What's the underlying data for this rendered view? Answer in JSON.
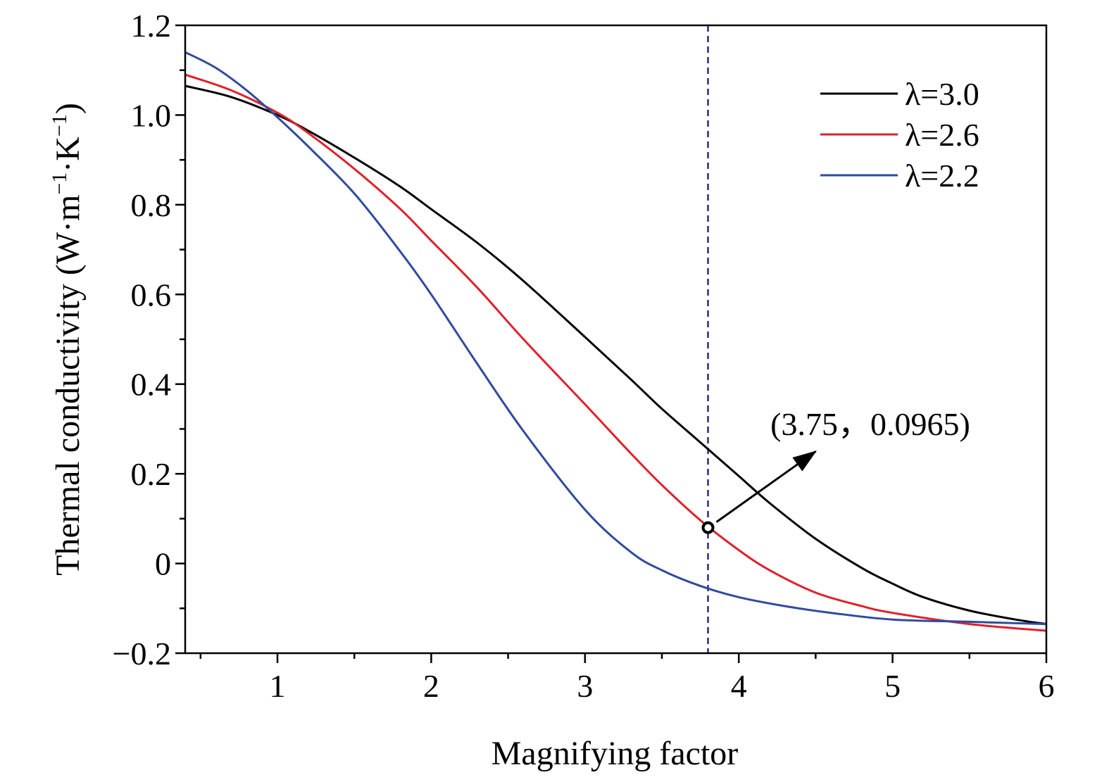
{
  "chart_data": {
    "type": "line",
    "xlabel": "Magnifying factor",
    "ylabel_main": "Thermal conductivity (W·m",
    "ylabel_sup1": "−1",
    "ylabel_mid": "·K",
    "ylabel_sup2": "−1",
    "ylabel_end": ")",
    "xlim": [
      0.4,
      6
    ],
    "ylim": [
      -0.2,
      1.2
    ],
    "x_ticks": [
      1,
      2,
      3,
      4,
      5,
      6
    ],
    "x_tick_labels": [
      "1",
      "2",
      "3",
      "4",
      "5",
      "6"
    ],
    "y_ticks": [
      -0.2,
      0,
      0.2,
      0.4,
      0.6,
      0.8,
      1.0,
      1.2
    ],
    "y_tick_labels": [
      "−0.2",
      "0",
      "0.2",
      "0.4",
      "0.6",
      "0.8",
      "1.0",
      "1.2"
    ],
    "grid": false,
    "legend_position": "top-right",
    "series": [
      {
        "name": "λ=3.0",
        "color": "#000000",
        "x": [
          0.4,
          0.7,
          1.0,
          1.2,
          1.5,
          1.8,
          2.0,
          2.3,
          2.6,
          3.0,
          3.3,
          3.5,
          3.75,
          4.0,
          4.2,
          4.5,
          4.8,
          5.0,
          5.2,
          5.5,
          5.8,
          6.0
        ],
        "y": [
          1.065,
          1.04,
          1.0,
          0.965,
          0.905,
          0.84,
          0.79,
          0.715,
          0.63,
          0.505,
          0.41,
          0.345,
          0.27,
          0.195,
          0.135,
          0.055,
          -0.01,
          -0.045,
          -0.075,
          -0.105,
          -0.125,
          -0.135
        ]
      },
      {
        "name": "λ=2.6",
        "color": "#e0202a",
        "x": [
          0.4,
          0.7,
          1.0,
          1.2,
          1.5,
          1.8,
          2.0,
          2.3,
          2.6,
          3.0,
          3.3,
          3.5,
          3.75,
          4.0,
          4.2,
          4.5,
          4.8,
          5.0,
          5.5,
          6.0
        ],
        "y": [
          1.09,
          1.055,
          1.005,
          0.96,
          0.88,
          0.79,
          0.72,
          0.615,
          0.5,
          0.355,
          0.245,
          0.175,
          0.0965,
          0.03,
          -0.015,
          -0.065,
          -0.095,
          -0.11,
          -0.135,
          -0.15
        ]
      },
      {
        "name": "λ=2.2",
        "color": "#2f4aa0",
        "x": [
          0.4,
          0.6,
          0.8,
          1.0,
          1.2,
          1.5,
          1.8,
          2.0,
          2.3,
          2.6,
          3.0,
          3.3,
          3.5,
          3.75,
          4.0,
          4.3,
          4.6,
          5.0,
          5.5,
          6.0
        ],
        "y": [
          1.14,
          1.105,
          1.055,
          0.995,
          0.93,
          0.825,
          0.695,
          0.6,
          0.445,
          0.295,
          0.12,
          0.025,
          -0.015,
          -0.05,
          -0.075,
          -0.095,
          -0.11,
          -0.125,
          -0.13,
          -0.135
        ]
      }
    ],
    "vertical_line": {
      "x": 3.8,
      "color": "#2b2b7a",
      "style": "dashed"
    },
    "annotation": {
      "text": "(3.75，0.0965)",
      "point": [
        3.8,
        0.08
      ],
      "arrow_to": [
        4.5,
        0.25
      ]
    }
  }
}
